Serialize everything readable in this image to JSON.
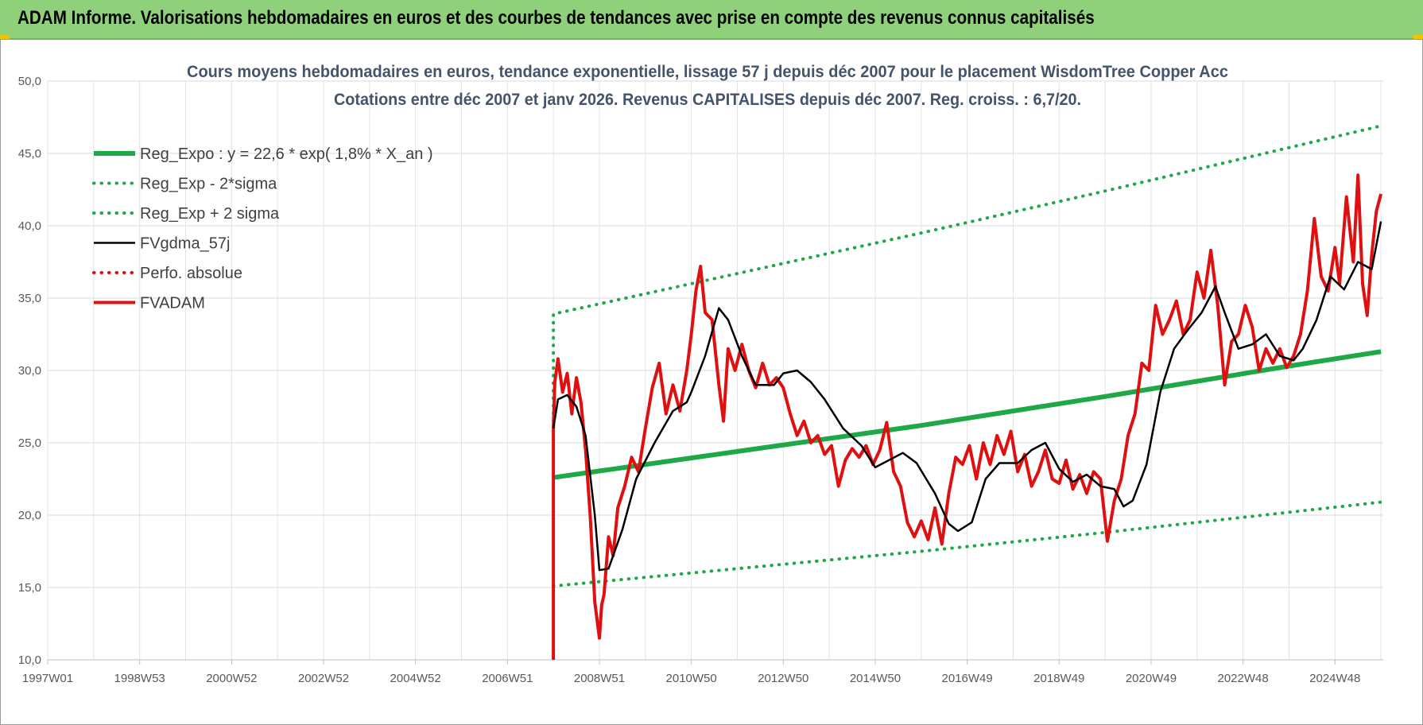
{
  "banner": {
    "title": "ADAM Informe. Valorisations hebdomadaires en euros et des courbes de tendances avec prise en compte des revenus connus capitalisés"
  },
  "colors": {
    "banner_bg": "#8fd07a",
    "regression": "#1fa847",
    "band": "#1fa847",
    "smoothed": "#000000",
    "perfo": "#e01010",
    "price": "#e01010"
  },
  "chart_data": {
    "type": "line",
    "title": "Cours moyens hebdomadaires en euros, tendance exponentielle, lissage 57 j depuis déc 2007 pour le placement WisdomTree Copper Acc",
    "subtitle": "Cotations entre déc 2007 et janv 2026. Revenus CAPITALISES depuis déc 2007. Reg. croiss. : 6,7/20.",
    "xlim": [
      1997.0,
      2026.05
    ],
    "ylim": [
      10,
      50
    ],
    "yticks": [
      "10,0",
      "15,0",
      "20,0",
      "25,0",
      "30,0",
      "35,0",
      "40,0",
      "45,0",
      "50,0"
    ],
    "xticks": [
      {
        "label": "1997W01",
        "x": 1997.0
      },
      {
        "label": "1998W53",
        "x": 1999.0
      },
      {
        "label": "2000W52",
        "x": 2001.0
      },
      {
        "label": "2002W52",
        "x": 2003.0
      },
      {
        "label": "2004W52",
        "x": 2005.0
      },
      {
        "label": "2006W51",
        "x": 2007.0
      },
      {
        "label": "2008W51",
        "x": 2009.0
      },
      {
        "label": "2010W50",
        "x": 2011.0
      },
      {
        "label": "2012W50",
        "x": 2013.0
      },
      {
        "label": "2014W50",
        "x": 2015.0
      },
      {
        "label": "2016W49",
        "x": 2017.0
      },
      {
        "label": "2018W49",
        "x": 2019.0
      },
      {
        "label": "2020W49",
        "x": 2021.0
      },
      {
        "label": "2022W48",
        "x": 2023.0
      },
      {
        "label": "2024W48",
        "x": 2025.0
      }
    ],
    "grid": true,
    "legend_position": "top-left",
    "series": [
      {
        "name": "Reg_Expo : y = 22,6 * exp( 1,8% *  X_an )",
        "style": "solid-thick",
        "color": "#1fa847",
        "x": [
          2008.0,
          2012.0,
          2016.0,
          2020.0,
          2024.0,
          2026.0
        ],
        "y": [
          22.6,
          24.4,
          26.2,
          28.2,
          30.3,
          31.3
        ]
      },
      {
        "name": "Reg_Exp - 2*sigma",
        "style": "dotted",
        "color": "#1fa847",
        "x": [
          2008.0,
          2012.0,
          2016.0,
          2020.0,
          2024.0,
          2026.0
        ],
        "y": [
          15.1,
          16.3,
          17.5,
          18.8,
          20.2,
          20.9
        ]
      },
      {
        "name": "Reg_Exp + 2 sigma",
        "style": "dotted",
        "color": "#1fa847",
        "x": [
          2008.0,
          2008.0,
          2012.0,
          2016.0,
          2020.0,
          2024.0,
          2026.0
        ],
        "y": [
          26.5,
          33.9,
          36.7,
          39.5,
          42.4,
          45.4,
          46.9
        ]
      },
      {
        "name": "FVgdma_57j",
        "style": "solid",
        "color": "#000000",
        "x": [
          2008.0,
          2008.1,
          2008.3,
          2008.5,
          2008.7,
          2008.9,
          2009.0,
          2009.2,
          2009.5,
          2009.8,
          2010.2,
          2010.6,
          2010.9,
          2011.0,
          2011.3,
          2011.6,
          2011.8,
          2012.1,
          2012.4,
          2012.8,
          2013.0,
          2013.3,
          2013.6,
          2013.9,
          2014.3,
          2014.7,
          2015.0,
          2015.3,
          2015.6,
          2015.9,
          2016.3,
          2016.6,
          2016.8,
          2017.1,
          2017.4,
          2017.7,
          2018.1,
          2018.4,
          2018.7,
          2019.0,
          2019.3,
          2019.6,
          2019.9,
          2020.2,
          2020.4,
          2020.6,
          2020.9,
          2021.2,
          2021.5,
          2021.8,
          2022.1,
          2022.4,
          2022.6,
          2022.9,
          2023.2,
          2023.5,
          2023.8,
          2024.1,
          2024.3,
          2024.6,
          2024.9,
          2025.2,
          2025.5,
          2025.8,
          2026.0
        ],
        "y": [
          26.0,
          28.0,
          28.3,
          27.5,
          25.5,
          20.0,
          16.2,
          16.3,
          19.0,
          22.5,
          25.0,
          27.2,
          27.8,
          28.5,
          31.0,
          34.3,
          33.5,
          31.0,
          29.0,
          29.0,
          29.8,
          30.0,
          29.2,
          28.0,
          26.0,
          24.8,
          23.3,
          23.8,
          24.3,
          23.6,
          21.5,
          19.4,
          18.9,
          19.5,
          22.5,
          23.6,
          23.6,
          24.5,
          25.0,
          23.2,
          22.3,
          22.8,
          22.0,
          21.8,
          20.6,
          21.0,
          23.5,
          28.5,
          31.5,
          32.8,
          34.0,
          35.8,
          34.0,
          31.5,
          31.8,
          32.5,
          31.0,
          30.7,
          31.5,
          33.5,
          36.5,
          35.6,
          37.5,
          37.0,
          40.3
        ]
      },
      {
        "name": "Perfo. absolue",
        "style": "dotted",
        "color": "#e01010",
        "x": [],
        "y": []
      },
      {
        "name": "FVADAM",
        "style": "solid-thick",
        "color": "#e01010",
        "x": [
          2008.0,
          2008.0,
          2008.03,
          2008.1,
          2008.2,
          2008.3,
          2008.4,
          2008.5,
          2008.6,
          2008.7,
          2008.8,
          2008.9,
          2009.0,
          2009.05,
          2009.1,
          2009.2,
          2009.3,
          2009.4,
          2009.55,
          2009.7,
          2009.85,
          2010.0,
          2010.15,
          2010.3,
          2010.45,
          2010.6,
          2010.75,
          2010.9,
          2011.0,
          2011.1,
          2011.2,
          2011.3,
          2011.45,
          2011.6,
          2011.7,
          2011.8,
          2011.95,
          2012.1,
          2012.25,
          2012.4,
          2012.55,
          2012.7,
          2012.85,
          2013.0,
          2013.15,
          2013.3,
          2013.45,
          2013.6,
          2013.75,
          2013.9,
          2014.05,
          2014.2,
          2014.35,
          2014.5,
          2014.65,
          2014.8,
          2014.95,
          2015.1,
          2015.25,
          2015.4,
          2015.55,
          2015.7,
          2015.85,
          2016.0,
          2016.15,
          2016.3,
          2016.45,
          2016.6,
          2016.75,
          2016.9,
          2017.05,
          2017.2,
          2017.35,
          2017.5,
          2017.65,
          2017.8,
          2017.95,
          2018.1,
          2018.25,
          2018.4,
          2018.55,
          2018.7,
          2018.85,
          2019.0,
          2019.15,
          2019.3,
          2019.45,
          2019.6,
          2019.75,
          2019.9,
          2020.05,
          2020.2,
          2020.35,
          2020.5,
          2020.65,
          2020.8,
          2020.95,
          2021.1,
          2021.25,
          2021.4,
          2021.55,
          2021.7,
          2021.85,
          2022.0,
          2022.15,
          2022.3,
          2022.45,
          2022.6,
          2022.75,
          2022.9,
          2023.05,
          2023.2,
          2023.35,
          2023.5,
          2023.65,
          2023.8,
          2023.95,
          2024.1,
          2024.25,
          2024.4,
          2024.55,
          2024.7,
          2024.85,
          2025.0,
          2025.1,
          2025.25,
          2025.4,
          2025.5,
          2025.6,
          2025.7,
          2025.8,
          2025.9,
          2026.0
        ],
        "y": [
          10.0,
          26.0,
          29.2,
          30.8,
          28.5,
          29.8,
          27.0,
          29.5,
          27.8,
          24.5,
          20.0,
          14.0,
          11.5,
          13.8,
          14.5,
          18.5,
          17.2,
          20.5,
          22.0,
          24.0,
          23.0,
          26.0,
          28.8,
          30.5,
          27.0,
          29.0,
          27.2,
          30.0,
          32.5,
          35.5,
          37.2,
          34.0,
          33.5,
          29.0,
          26.5,
          31.5,
          30.0,
          31.8,
          30.0,
          28.8,
          30.5,
          29.0,
          29.5,
          28.8,
          27.0,
          25.5,
          26.5,
          25.0,
          25.5,
          24.2,
          24.8,
          22.0,
          23.8,
          24.6,
          24.0,
          24.8,
          23.5,
          24.5,
          26.4,
          23.0,
          22.0,
          19.5,
          18.5,
          19.6,
          18.3,
          20.5,
          18.0,
          21.5,
          24.0,
          23.5,
          24.8,
          22.5,
          25.0,
          23.5,
          25.5,
          24.2,
          25.8,
          23.0,
          24.2,
          22.0,
          23.0,
          24.5,
          22.5,
          22.2,
          23.8,
          21.8,
          22.8,
          21.5,
          23.0,
          22.5,
          18.2,
          21.0,
          22.5,
          25.5,
          27.0,
          30.5,
          30.0,
          34.5,
          32.5,
          33.5,
          34.8,
          32.5,
          33.5,
          36.8,
          35.0,
          38.3,
          34.5,
          29.0,
          32.0,
          32.5,
          34.5,
          33.0,
          30.0,
          31.5,
          30.5,
          31.5,
          30.2,
          31.0,
          32.5,
          35.5,
          40.5,
          36.5,
          35.5,
          38.5,
          36.0,
          42.0,
          37.5,
          43.5,
          36.0,
          33.8,
          38.0,
          41.0,
          42.2
        ]
      }
    ]
  }
}
